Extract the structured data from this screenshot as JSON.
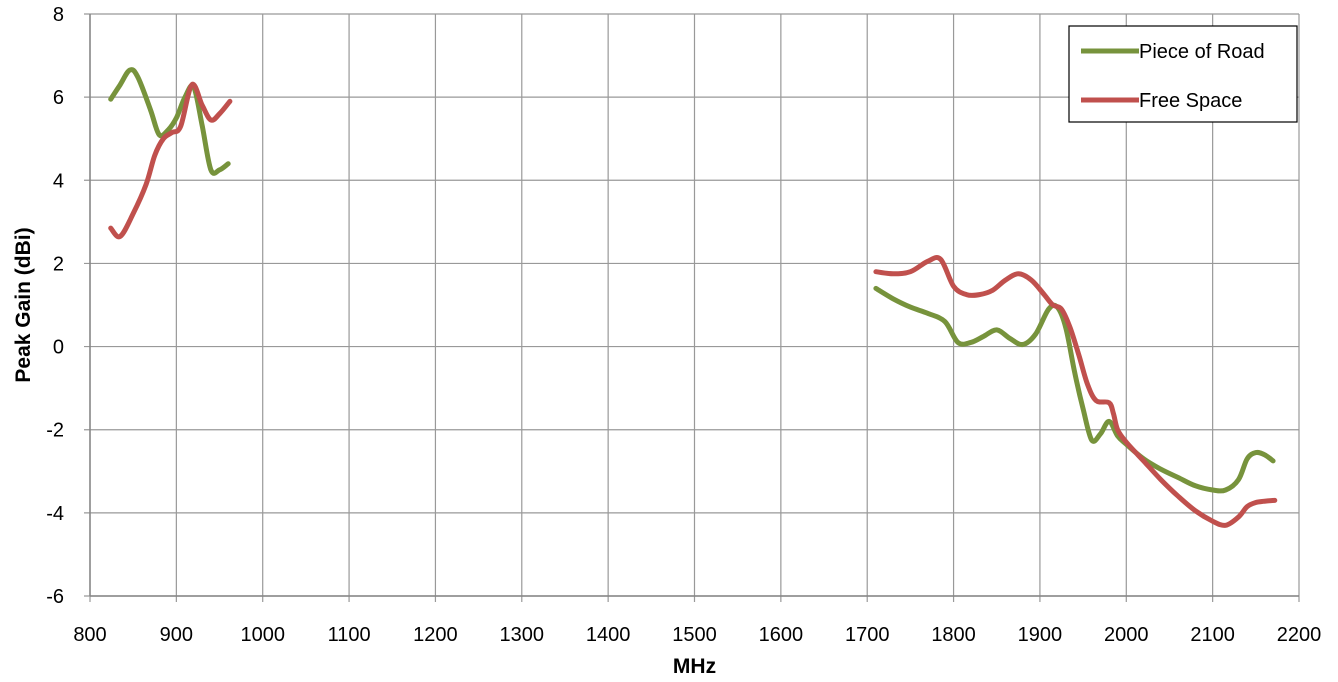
{
  "chart_data": {
    "type": "line",
    "title": "",
    "xlabel": "MHz",
    "ylabel": "Peak Gain (dBi)",
    "xlim": [
      800,
      2200
    ],
    "ylim": [
      -6,
      8
    ],
    "xticks": [
      800,
      900,
      1000,
      1100,
      1200,
      1300,
      1400,
      1500,
      1600,
      1700,
      1800,
      1900,
      2000,
      2100,
      2200
    ],
    "yticks": [
      -6,
      -4,
      -2,
      0,
      2,
      4,
      6,
      8
    ],
    "xtick_labels": [
      "800",
      "900",
      "1000",
      "1100",
      "1200",
      "1300",
      "1400",
      "1500",
      "1600",
      "1700",
      "1800",
      "1900",
      "2000",
      "2100",
      "2200"
    ],
    "ytick_labels": [
      "-6",
      "-4",
      "-2",
      "0",
      "2",
      "4",
      "6",
      "8"
    ],
    "grid": true,
    "legend_position": "top-right",
    "series": [
      {
        "name": "Piece of Road",
        "color": "#77933C",
        "segments": [
          [
            [
              824,
              5.95
            ],
            [
              835,
              6.3
            ],
            [
              846,
              6.65
            ],
            [
              855,
              6.5
            ],
            [
              870,
              5.7
            ],
            [
              880,
              5.1
            ],
            [
              890,
              5.2
            ],
            [
              900,
              5.5
            ],
            [
              910,
              6.0
            ],
            [
              920,
              6.25
            ],
            [
              930,
              5.3
            ],
            [
              940,
              4.25
            ],
            [
              950,
              4.25
            ],
            [
              960,
              4.4
            ]
          ],
          [
            [
              1710,
              1.4
            ],
            [
              1730,
              1.15
            ],
            [
              1750,
              0.95
            ],
            [
              1770,
              0.8
            ],
            [
              1790,
              0.6
            ],
            [
              1805,
              0.1
            ],
            [
              1820,
              0.1
            ],
            [
              1835,
              0.25
            ],
            [
              1850,
              0.4
            ],
            [
              1865,
              0.2
            ],
            [
              1880,
              0.05
            ],
            [
              1895,
              0.3
            ],
            [
              1910,
              0.9
            ],
            [
              1920,
              0.95
            ],
            [
              1930,
              0.45
            ],
            [
              1940,
              -0.6
            ],
            [
              1950,
              -1.5
            ],
            [
              1960,
              -2.25
            ],
            [
              1970,
              -2.1
            ],
            [
              1980,
              -1.8
            ],
            [
              1990,
              -2.15
            ],
            [
              2000,
              -2.35
            ],
            [
              2020,
              -2.7
            ],
            [
              2040,
              -2.95
            ],
            [
              2060,
              -3.15
            ],
            [
              2080,
              -3.35
            ],
            [
              2100,
              -3.45
            ],
            [
              2115,
              -3.45
            ],
            [
              2130,
              -3.2
            ],
            [
              2140,
              -2.7
            ],
            [
              2150,
              -2.55
            ],
            [
              2160,
              -2.6
            ],
            [
              2170,
              -2.75
            ]
          ]
        ]
      },
      {
        "name": "Free Space",
        "color": "#C0504D",
        "segments": [
          [
            [
              824,
              2.85
            ],
            [
              835,
              2.65
            ],
            [
              850,
              3.2
            ],
            [
              865,
              3.9
            ],
            [
              875,
              4.6
            ],
            [
              885,
              5.0
            ],
            [
              895,
              5.15
            ],
            [
              905,
              5.3
            ],
            [
              918,
              6.3
            ],
            [
              930,
              5.8
            ],
            [
              940,
              5.45
            ],
            [
              950,
              5.6
            ],
            [
              962,
              5.9
            ]
          ],
          [
            [
              1710,
              1.8
            ],
            [
              1730,
              1.75
            ],
            [
              1750,
              1.8
            ],
            [
              1770,
              2.05
            ],
            [
              1785,
              2.1
            ],
            [
              1800,
              1.45
            ],
            [
              1815,
              1.25
            ],
            [
              1830,
              1.25
            ],
            [
              1845,
              1.35
            ],
            [
              1860,
              1.6
            ],
            [
              1875,
              1.75
            ],
            [
              1890,
              1.6
            ],
            [
              1905,
              1.25
            ],
            [
              1915,
              1.0
            ],
            [
              1925,
              0.9
            ],
            [
              1935,
              0.45
            ],
            [
              1945,
              -0.2
            ],
            [
              1955,
              -0.9
            ],
            [
              1965,
              -1.3
            ],
            [
              1980,
              -1.35
            ],
            [
              1985,
              -1.6
            ],
            [
              1990,
              -2.0
            ],
            [
              2000,
              -2.3
            ],
            [
              2020,
              -2.75
            ],
            [
              2040,
              -3.2
            ],
            [
              2060,
              -3.6
            ],
            [
              2080,
              -3.95
            ],
            [
              2100,
              -4.2
            ],
            [
              2115,
              -4.3
            ],
            [
              2130,
              -4.1
            ],
            [
              2140,
              -3.85
            ],
            [
              2150,
              -3.75
            ],
            [
              2160,
              -3.72
            ],
            [
              2172,
              -3.7
            ]
          ]
        ]
      }
    ]
  },
  "colors": {
    "grid": "#999999",
    "frame": "#868686",
    "legend_border": "#000000"
  }
}
